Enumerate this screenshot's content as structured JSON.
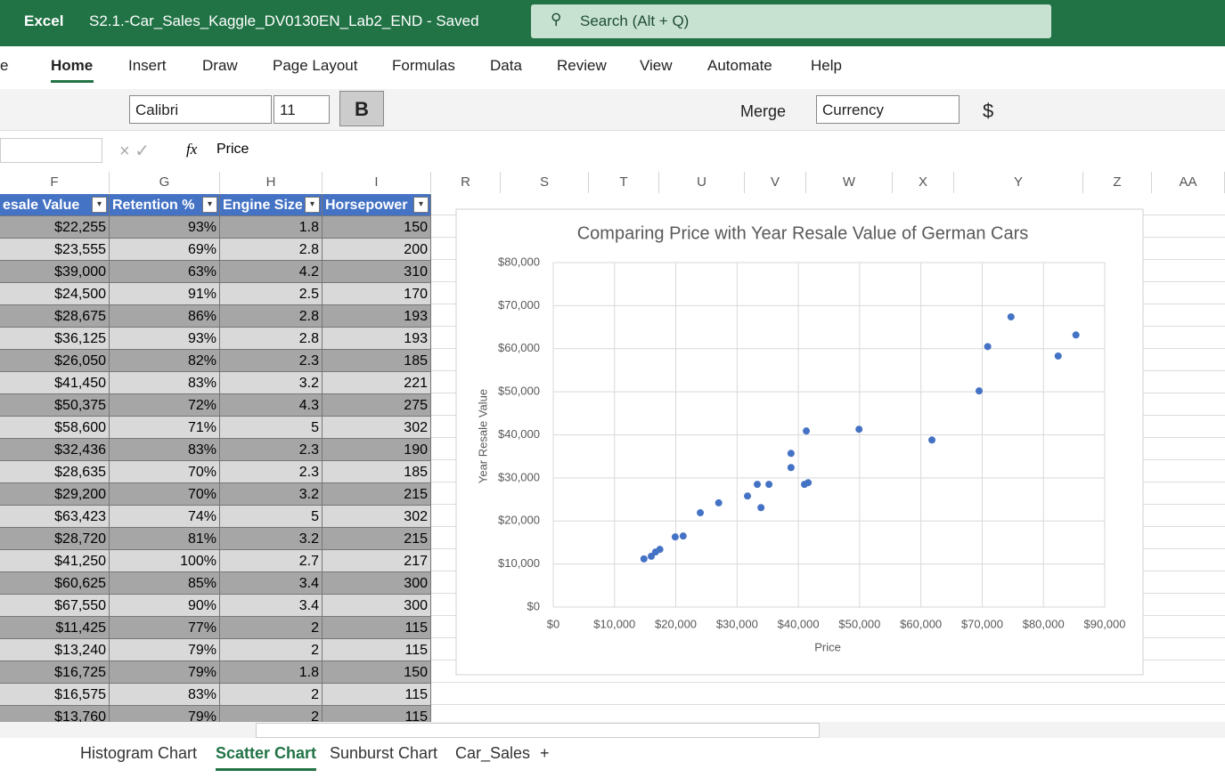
{
  "app": {
    "name": "Excel",
    "document": "S2.1.-Car_Sales_Kaggle_DV0130EN_Lab2_END  -  Saved",
    "search": "Search (Alt + Q)"
  },
  "ribbon_tabs": [
    "e",
    "Home",
    "Insert",
    "Draw",
    "Page Layout",
    "Formulas",
    "Data",
    "Review",
    "View",
    "Automate",
    "Help"
  ],
  "toolbar": {
    "font": "Calibri",
    "size": "11",
    "bold": "B",
    "merge": "Merge",
    "number_format": "Currency",
    "currency": "$"
  },
  "formula_bar": {
    "fx": "fx",
    "content": "Price"
  },
  "column_headers": [
    "F",
    "G",
    "H",
    "I",
    "R",
    "S",
    "T",
    "U",
    "V",
    "W",
    "X",
    "Y",
    "Z",
    "AA"
  ],
  "table": {
    "header": [
      "esale Value",
      "Retention %",
      "Engine Size",
      "Horsepower"
    ],
    "rows": [
      [
        "$22,255",
        "93%",
        "1.8",
        "150"
      ],
      [
        "$23,555",
        "69%",
        "2.8",
        "200"
      ],
      [
        "$39,000",
        "63%",
        "4.2",
        "310"
      ],
      [
        "$24,500",
        "91%",
        "2.5",
        "170"
      ],
      [
        "$28,675",
        "86%",
        "2.8",
        "193"
      ],
      [
        "$36,125",
        "93%",
        "2.8",
        "193"
      ],
      [
        "$26,050",
        "82%",
        "2.3",
        "185"
      ],
      [
        "$41,450",
        "83%",
        "3.2",
        "221"
      ],
      [
        "$50,375",
        "72%",
        "4.3",
        "275"
      ],
      [
        "$58,600",
        "71%",
        "5",
        "302"
      ],
      [
        "$32,436",
        "83%",
        "2.3",
        "190"
      ],
      [
        "$28,635",
        "70%",
        "2.3",
        "185"
      ],
      [
        "$29,200",
        "70%",
        "3.2",
        "215"
      ],
      [
        "$63,423",
        "74%",
        "5",
        "302"
      ],
      [
        "$28,720",
        "81%",
        "3.2",
        "215"
      ],
      [
        "$41,250",
        "100%",
        "2.7",
        "217"
      ],
      [
        "$60,625",
        "85%",
        "3.4",
        "300"
      ],
      [
        "$67,550",
        "90%",
        "3.4",
        "300"
      ],
      [
        "$11,425",
        "77%",
        "2",
        "115"
      ],
      [
        "$13,240",
        "79%",
        "2",
        "115"
      ],
      [
        "$16,725",
        "79%",
        "1.8",
        "150"
      ],
      [
        "$16,575",
        "83%",
        "2",
        "115"
      ],
      [
        "$13,760",
        "79%",
        "2",
        "115"
      ]
    ]
  },
  "chart_data": {
    "type": "scatter",
    "title": "Comparing Price with Year Resale Value of German Cars",
    "x_label": "Price",
    "y_label": "Year Resale Value",
    "color": "#4472c4",
    "grid": true,
    "x": [
      14800,
      16000,
      16700,
      17400,
      19900,
      21200,
      24000,
      27000,
      31700,
      33300,
      33900,
      35200,
      38800,
      38800,
      41000,
      41600,
      41300,
      49900,
      61800,
      69500,
      70900,
      74700,
      82400,
      85300
    ],
    "values": [
      11200,
      11800,
      12800,
      13400,
      16300,
      16500,
      21900,
      24200,
      25800,
      28500,
      23100,
      28500,
      35700,
      32400,
      28500,
      28900,
      40900,
      41300,
      38800,
      50200,
      60500,
      67400,
      58300,
      63200
    ],
    "xlim": [
      0,
      90000
    ],
    "ylim": [
      0,
      80000
    ],
    "xticks": [
      {
        "value": 0,
        "label": "$0"
      },
      {
        "value": 10000,
        "label": "$10,000"
      },
      {
        "value": 20000,
        "label": "$20,000"
      },
      {
        "value": 30000,
        "label": "$30,000"
      },
      {
        "value": 40000,
        "label": "$40,000"
      },
      {
        "value": 50000,
        "label": "$50,000"
      },
      {
        "value": 60000,
        "label": "$60,000"
      },
      {
        "value": 70000,
        "label": "$70,000"
      },
      {
        "value": 80000,
        "label": "$80,000"
      },
      {
        "value": 90000,
        "label": "$90,000"
      }
    ],
    "yticks": [
      {
        "value": 0,
        "label": "$0"
      },
      {
        "value": 10000,
        "label": "$10,000"
      },
      {
        "value": 20000,
        "label": "$20,000"
      },
      {
        "value": 30000,
        "label": "$30,000"
      },
      {
        "value": 40000,
        "label": "$40,000"
      },
      {
        "value": 50000,
        "label": "$50,000"
      },
      {
        "value": 60000,
        "label": "$60,000"
      },
      {
        "value": 70000,
        "label": "$70,000"
      },
      {
        "value": 80000,
        "label": "$80,000"
      }
    ]
  },
  "sheet_tabs": [
    "Histogram Chart",
    "Scatter Chart",
    "Sunburst Chart",
    "Car_Sales",
    "+"
  ]
}
